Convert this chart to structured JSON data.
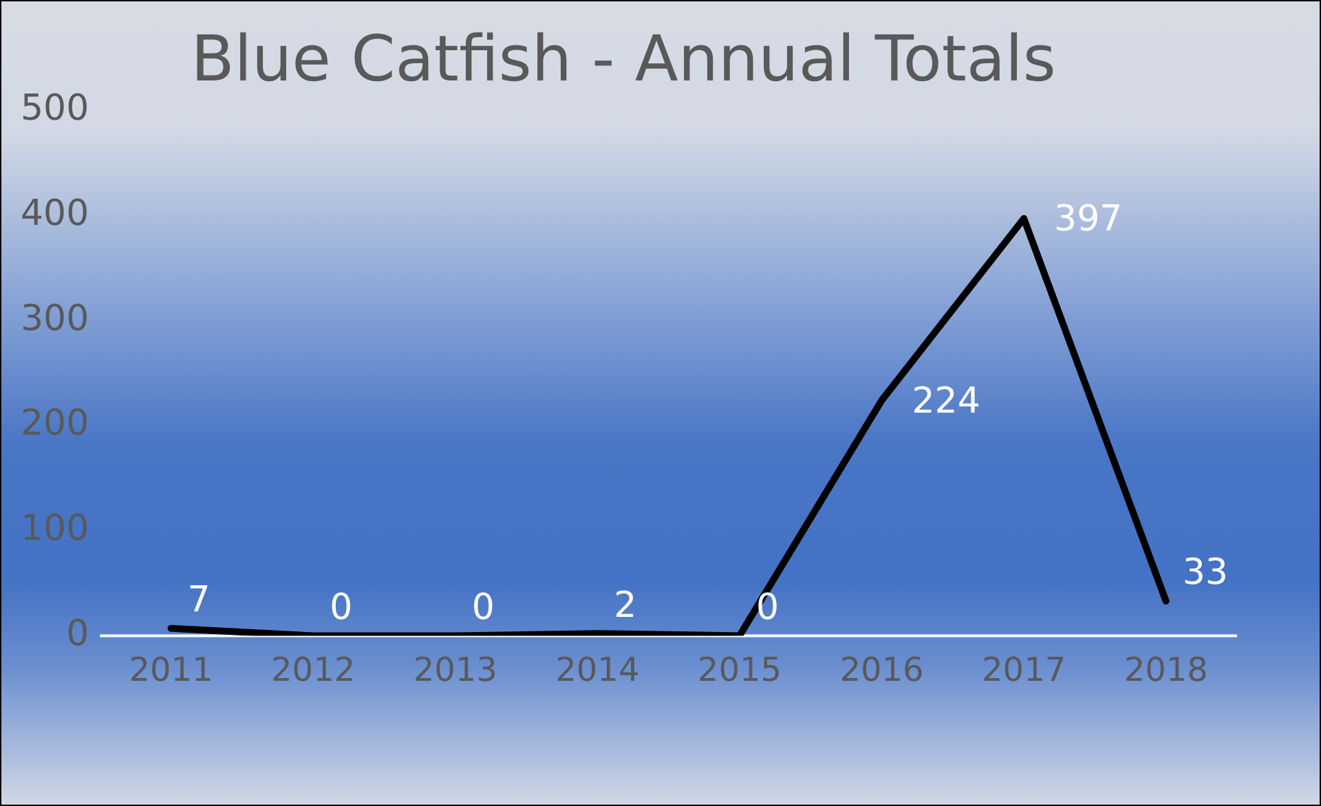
{
  "chart_data": {
    "type": "line",
    "title": "Blue Catfish - Annual Totals",
    "categories": [
      "2011",
      "2012",
      "2013",
      "2014",
      "2015",
      "2016",
      "2017",
      "2018"
    ],
    "series": [
      {
        "color": "#000000",
        "values": [
          7,
          0,
          0,
          2,
          0,
          224,
          397,
          33
        ]
      }
    ],
    "ylim": [
      0,
      500
    ],
    "yticks": [
      0,
      100,
      200,
      300,
      400,
      500
    ],
    "grid": false,
    "legend": false,
    "marker": "none",
    "line_style": "solid",
    "data_labels": true
  }
}
